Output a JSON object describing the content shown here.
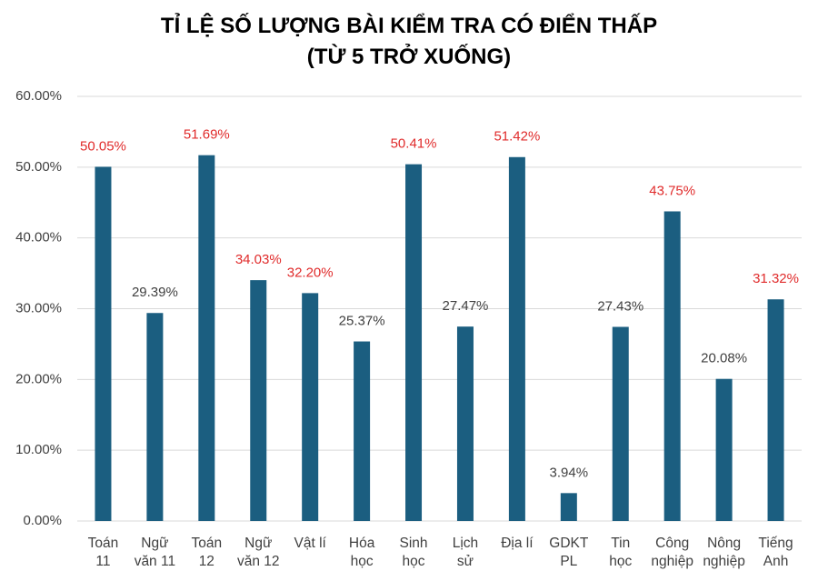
{
  "chart_data": {
    "type": "bar",
    "title": "TỈ LỆ SỐ LƯỢNG BÀI KIỂM TRA CÓ ĐIỂN THẤP\n(TỪ 5 TRỞ XUỐNG)",
    "categories": [
      "Toán\n11",
      "Ngữ\nvăn 11",
      "Toán\n12",
      "Ngữ\nvăn 12",
      "Vật lí",
      "Hóa\nhọc",
      "Sinh\nhọc",
      "Lịch\nsử",
      "Địa lí",
      "GDKT\nPL",
      "Tin\nhọc",
      "Công\nnghiệp",
      "Nông\nnghiệp",
      "Tiếng\nAnh"
    ],
    "values": [
      50.05,
      29.39,
      51.69,
      34.03,
      32.2,
      25.37,
      50.41,
      27.47,
      51.42,
      3.94,
      27.43,
      43.75,
      20.08,
      31.32
    ],
    "value_labels": [
      "50.05%",
      "29.39%",
      "51.69%",
      "34.03%",
      "32.20%",
      "25.37%",
      "50.41%",
      "27.47%",
      "51.42%",
      "3.94%",
      "27.43%",
      "43.75%",
      "20.08%",
      "31.32%"
    ],
    "value_label_colors": [
      "#e02b2b",
      "#404040",
      "#e02b2b",
      "#e02b2b",
      "#e02b2b",
      "#404040",
      "#e02b2b",
      "#404040",
      "#e02b2b",
      "#404040",
      "#404040",
      "#e02b2b",
      "#404040",
      "#e02b2b"
    ],
    "color": "#1b5e80",
    "ylim": [
      0,
      60
    ],
    "yticks": [
      {
        "value": 0,
        "label": "0.00%"
      },
      {
        "value": 10,
        "label": "10.00%"
      },
      {
        "value": 20,
        "label": "20.00%"
      },
      {
        "value": 30,
        "label": "30.00%"
      },
      {
        "value": 40,
        "label": "40.00%"
      },
      {
        "value": 50,
        "label": "50.00%"
      },
      {
        "value": 60,
        "label": "60.00%"
      }
    ],
    "grid": true
  }
}
